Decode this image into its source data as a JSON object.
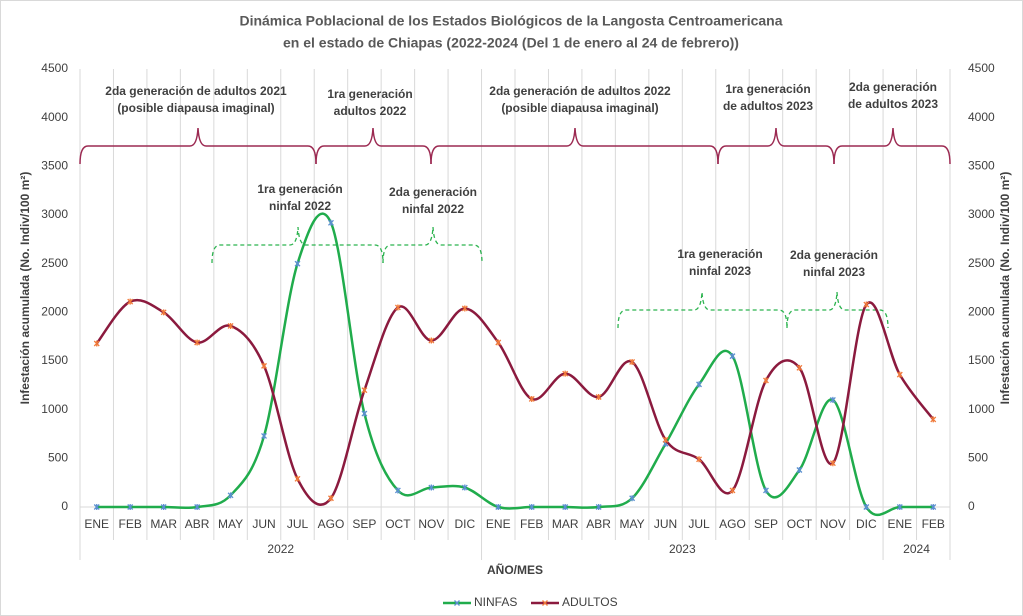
{
  "chart_data": {
    "type": "line",
    "title_lines": [
      "Dinámica Poblacional de los Estados Biológicos de la Langosta Centroamericana",
      "en el estado de Chiapas (2022-2024 (Del 1 de enero al 24 de febrero))"
    ],
    "xlabel": "AÑO/MES",
    "ylabel": "Infestación acumulada (No. Indiv/100 m²)",
    "y2label": "Infestación acumulada (No. Indiv/100 m²)",
    "category_groups": [
      {
        "label": "2022",
        "categories": [
          "ENE",
          "FEB",
          "MAR",
          "ABR",
          "MAY",
          "JUN",
          "JUL",
          "AGO",
          "SEP",
          "OCT",
          "NOV",
          "DIC"
        ]
      },
      {
        "label": "2023",
        "categories": [
          "ENE",
          "FEB",
          "MAR",
          "ABR",
          "MAY",
          "JUN",
          "JUL",
          "AGO",
          "SEP",
          "OCT",
          "NOV",
          "DIC"
        ]
      },
      {
        "label": "2024",
        "categories": [
          "ENE",
          "FEB"
        ]
      }
    ],
    "series": [
      {
        "name": "NINFAS",
        "color": "#20ac4c",
        "marker_color": "#5b8fd0",
        "values": [
          0,
          0,
          0,
          0,
          120,
          730,
          2500,
          2920,
          960,
          170,
          200,
          200,
          0,
          0,
          0,
          0,
          90,
          650,
          1260,
          1550,
          170,
          380,
          1100,
          0,
          0,
          0
        ]
      },
      {
        "name": "ADULTOS",
        "color": "#8b1a3e",
        "marker_color": "#f07a3a",
        "values": [
          1680,
          2110,
          2000,
          1690,
          1860,
          1450,
          290,
          90,
          1200,
          2050,
          1710,
          2040,
          1690,
          1110,
          1370,
          1130,
          1490,
          690,
          490,
          170,
          1300,
          1430,
          450,
          2080,
          1360,
          900
        ]
      }
    ],
    "ylim": [
      0,
      4500
    ],
    "yticks": [
      0,
      500,
      1000,
      1500,
      2000,
      2500,
      3000,
      3500,
      4000,
      4500
    ],
    "y2lim": [
      0,
      4500
    ],
    "y2ticks": [
      0,
      500,
      1000,
      1500,
      2000,
      2500,
      3000,
      3500,
      4000,
      4500
    ],
    "smooth": true,
    "legend": "bottom",
    "annotations": [
      {
        "lines": [
          "2da generación de adultos 2021",
          "(posible diapausa imaginal)"
        ]
      },
      {
        "lines": [
          "1ra generación",
          "adultos 2022"
        ]
      },
      {
        "lines": [
          "2da generación de adultos 2022",
          "(posible diapausa imaginal)"
        ]
      },
      {
        "lines": [
          "1ra generación",
          "de adultos 2023"
        ]
      },
      {
        "lines": [
          "2da generación",
          "de adultos 2023"
        ]
      },
      {
        "lines": [
          "1ra generación",
          "ninfal 2022"
        ]
      },
      {
        "lines": [
          "2da generación",
          "ninfal 2022"
        ]
      },
      {
        "lines": [
          "1ra generación",
          "ninfal 2023"
        ]
      },
      {
        "lines": [
          "2da generación",
          "ninfal 2023"
        ]
      }
    ]
  }
}
